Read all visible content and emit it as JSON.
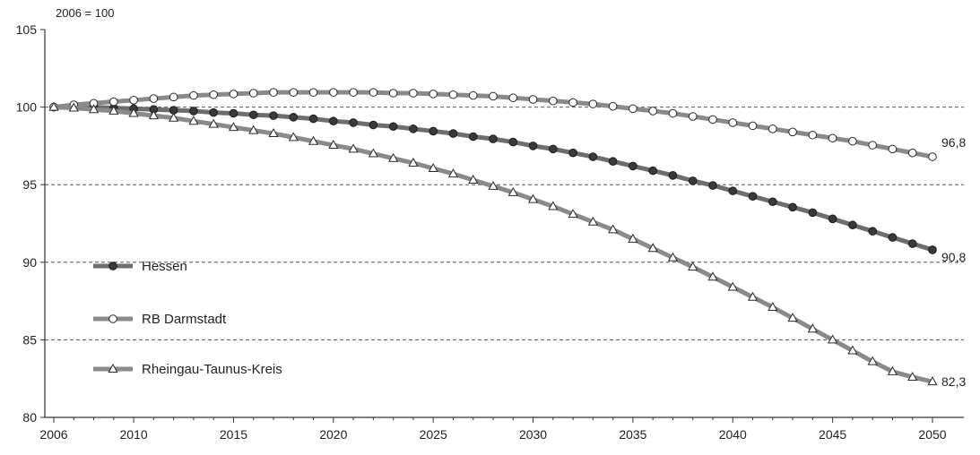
{
  "chart_data": {
    "type": "line",
    "unit_note": "2006 = 100",
    "xlim": [
      2006,
      2050
    ],
    "ylim": [
      80,
      105
    ],
    "x_ticks": [
      "2006",
      "2010",
      "2015",
      "2020",
      "2025",
      "2030",
      "2035",
      "2040",
      "2045",
      "2050"
    ],
    "y_ticks": [
      "80",
      "85",
      "90",
      "95",
      "100",
      "105"
    ],
    "grid": "dashed horizontal at 85, 90, 95, 100",
    "legend_position": "left",
    "series": [
      {
        "name": "Hessen",
        "marker": "filled-circle",
        "line_color": "#6e6e6e",
        "marker_color": "#3a3a3a",
        "end_label": "90,8",
        "x": [
          2006,
          2007,
          2008,
          2009,
          2010,
          2011,
          2012,
          2013,
          2014,
          2015,
          2016,
          2017,
          2018,
          2019,
          2020,
          2021,
          2022,
          2023,
          2024,
          2025,
          2026,
          2027,
          2028,
          2029,
          2030,
          2031,
          2032,
          2033,
          2034,
          2035,
          2036,
          2037,
          2038,
          2039,
          2040,
          2041,
          2042,
          2043,
          2044,
          2045,
          2046,
          2047,
          2048,
          2049,
          2050
        ],
        "values": [
          100,
          100,
          100,
          99.95,
          99.9,
          99.85,
          99.8,
          99.75,
          99.65,
          99.6,
          99.5,
          99.45,
          99.35,
          99.25,
          99.1,
          99.0,
          98.85,
          98.75,
          98.6,
          98.45,
          98.3,
          98.1,
          97.95,
          97.75,
          97.5,
          97.3,
          97.05,
          96.8,
          96.5,
          96.2,
          95.9,
          95.6,
          95.25,
          94.95,
          94.6,
          94.25,
          93.9,
          93.55,
          93.2,
          92.8,
          92.4,
          92.0,
          91.6,
          91.2,
          90.8
        ]
      },
      {
        "name": "RB Darmstadt",
        "marker": "open-circle",
        "line_color": "#8a8a8a",
        "marker_color": "#ffffff",
        "end_label": "96,8",
        "x": [
          2006,
          2007,
          2008,
          2009,
          2010,
          2011,
          2012,
          2013,
          2014,
          2015,
          2016,
          2017,
          2018,
          2019,
          2020,
          2021,
          2022,
          2023,
          2024,
          2025,
          2026,
          2027,
          2028,
          2029,
          2030,
          2031,
          2032,
          2033,
          2034,
          2035,
          2036,
          2037,
          2038,
          2039,
          2040,
          2041,
          2042,
          2043,
          2044,
          2045,
          2046,
          2047,
          2048,
          2049,
          2050
        ],
        "values": [
          100,
          100.15,
          100.25,
          100.35,
          100.45,
          100.55,
          100.65,
          100.75,
          100.8,
          100.85,
          100.9,
          100.95,
          100.95,
          100.95,
          100.95,
          100.95,
          100.95,
          100.9,
          100.9,
          100.85,
          100.8,
          100.75,
          100.7,
          100.6,
          100.5,
          100.4,
          100.3,
          100.2,
          100.05,
          99.9,
          99.75,
          99.6,
          99.4,
          99.2,
          99.0,
          98.8,
          98.6,
          98.4,
          98.2,
          98.0,
          97.8,
          97.55,
          97.3,
          97.05,
          96.8
        ]
      },
      {
        "name": "Rheingau-Taunus-Kreis",
        "marker": "open-triangle",
        "line_color": "#8a8a8a",
        "marker_color": "#ffffff",
        "end_label": "82,3",
        "x": [
          2006,
          2007,
          2008,
          2009,
          2010,
          2011,
          2012,
          2013,
          2014,
          2015,
          2016,
          2017,
          2018,
          2019,
          2020,
          2021,
          2022,
          2023,
          2024,
          2025,
          2026,
          2027,
          2028,
          2029,
          2030,
          2031,
          2032,
          2033,
          2034,
          2035,
          2036,
          2037,
          2038,
          2039,
          2040,
          2041,
          2042,
          2043,
          2044,
          2045,
          2046,
          2047,
          2048,
          2049,
          2050
        ],
        "values": [
          100,
          99.95,
          99.85,
          99.75,
          99.6,
          99.45,
          99.3,
          99.1,
          98.9,
          98.7,
          98.5,
          98.3,
          98.05,
          97.8,
          97.55,
          97.3,
          97.0,
          96.7,
          96.4,
          96.05,
          95.7,
          95.3,
          94.9,
          94.5,
          94.05,
          93.6,
          93.1,
          92.6,
          92.1,
          91.5,
          90.9,
          90.3,
          89.7,
          89.05,
          88.4,
          87.75,
          87.1,
          86.4,
          85.7,
          85.0,
          84.3,
          83.6,
          82.95,
          82.6,
          82.3
        ]
      }
    ]
  }
}
